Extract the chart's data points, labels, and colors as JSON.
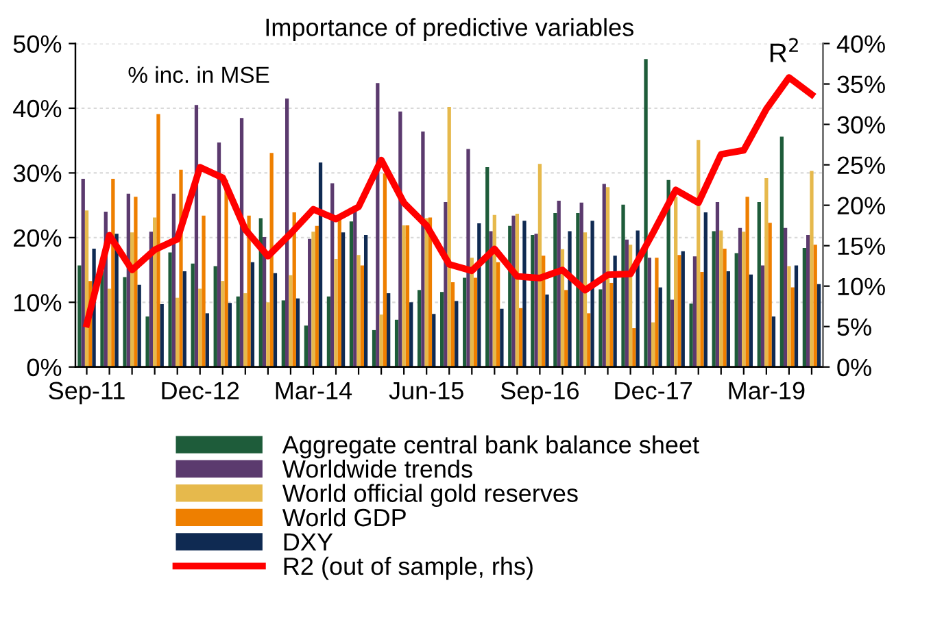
{
  "chart_data": {
    "type": "bar",
    "title": "Importance of predictive variables",
    "categories": [
      "Sep-11",
      null,
      null,
      null,
      null,
      "Dec-12",
      null,
      null,
      null,
      null,
      "Mar-14",
      null,
      null,
      null,
      null,
      "Jun-15",
      null,
      null,
      null,
      null,
      "Sep-16",
      null,
      null,
      null,
      null,
      "Dec-17",
      null,
      null,
      null,
      null,
      "Mar-19",
      null,
      null
    ],
    "series": [
      {
        "name": "Aggregate central bank balance sheet",
        "color": "#1e5c3a",
        "values": [
          15.7,
          14.8,
          13.9,
          7.8,
          17.7,
          16.0,
          15.6,
          10.9,
          23.0,
          10.3,
          6.4,
          10.9,
          22.5,
          5.7,
          7.3,
          11.9,
          11.6,
          13.8,
          30.9,
          21.8,
          20.4,
          23.8,
          23.8,
          12.0,
          25.1,
          47.6,
          28.9,
          9.8,
          21.0,
          17.6,
          25.5,
          35.6,
          18.4
        ]
      },
      {
        "name": "Worldwide trends",
        "color": "#5b3a6e",
        "values": [
          29.1,
          24.0,
          26.8,
          20.9,
          26.8,
          40.5,
          34.7,
          38.5,
          20.1,
          41.5,
          19.8,
          28.4,
          24.3,
          43.9,
          39.5,
          36.4,
          25.5,
          33.7,
          21.0,
          23.4,
          20.6,
          25.7,
          25.4,
          28.3,
          19.7,
          16.9,
          10.4,
          17.1,
          25.5,
          21.5,
          15.7,
          21.5,
          20.4
        ]
      },
      {
        "name": "World official gold reserves",
        "color": "#e6b94c",
        "values": [
          24.2,
          12.1,
          20.8,
          23.1,
          10.7,
          12.1,
          13.3,
          11.4,
          10.0,
          14.2,
          20.9,
          16.7,
          17.3,
          8.1,
          21.9,
          23.0,
          40.2,
          16.9,
          23.5,
          23.7,
          31.4,
          18.2,
          20.8,
          27.8,
          18.9,
          6.9,
          26.3,
          35.1,
          21.1,
          20.9,
          29.2,
          15.6,
          30.3
        ]
      },
      {
        "name": "World GDP",
        "color": "#ee7f00",
        "values": [
          13.3,
          29.1,
          26.3,
          39.1,
          30.5,
          23.4,
          28.9,
          23.4,
          33.1,
          23.9,
          21.8,
          22.9,
          15.7,
          29.9,
          21.9,
          23.1,
          13.1,
          13.8,
          16.2,
          9.1,
          17.2,
          11.9,
          8.3,
          13.0,
          6.0,
          16.9,
          17.3,
          14.7,
          18.3,
          26.3,
          22.3,
          12.3,
          18.9
        ]
      },
      {
        "name": "DXY",
        "color": "#0f2a52",
        "values": [
          18.3,
          20.6,
          12.7,
          9.7,
          14.8,
          8.3,
          9.9,
          16.2,
          14.5,
          10.6,
          31.6,
          20.8,
          20.4,
          11.4,
          10.0,
          8.2,
          10.2,
          22.2,
          9.0,
          22.6,
          11.2,
          21.0,
          22.6,
          17.2,
          21.1,
          12.3,
          17.9,
          23.9,
          14.8,
          14.3,
          7.8,
          15.7,
          12.8
        ]
      },
      {
        "name": "R2 (out of sample, rhs)",
        "color": "#ff0000",
        "type": "line",
        "axis": "y2",
        "values": [
          5.3,
          16.3,
          12.0,
          14.5,
          15.8,
          24.7,
          23.4,
          17.0,
          13.7,
          16.5,
          19.5,
          18.3,
          19.8,
          25.6,
          20.3,
          17.5,
          12.7,
          11.9,
          14.6,
          11.2,
          11.0,
          12.0,
          9.5,
          11.4,
          11.5,
          16.6,
          21.9,
          20.3,
          26.3,
          26.8,
          31.9,
          35.8,
          33.7
        ]
      }
    ],
    "ylim": [
      0,
      50
    ],
    "yticks": [
      {
        "value": 0,
        "label": "0%"
      },
      {
        "value": 10,
        "label": "10%"
      },
      {
        "value": 20,
        "label": "20%"
      },
      {
        "value": 30,
        "label": "30%"
      },
      {
        "value": 40,
        "label": "40%"
      },
      {
        "value": 50,
        "label": "50%"
      }
    ],
    "y2lim": [
      0,
      40
    ],
    "y2ticks": [
      {
        "value": 0,
        "label": "0%"
      },
      {
        "value": 5,
        "label": "5%"
      },
      {
        "value": 10,
        "label": "10%"
      },
      {
        "value": 15,
        "label": "15%"
      },
      {
        "value": 20,
        "label": "20%"
      },
      {
        "value": 25,
        "label": "25%"
      },
      {
        "value": 30,
        "label": "30%"
      },
      {
        "value": 35,
        "label": "35%"
      },
      {
        "value": 40,
        "label": "40%"
      }
    ],
    "grid": "y",
    "legend": "bottom",
    "annotations": [
      "% inc. in MSE",
      "R$^{2}$"
    ]
  }
}
